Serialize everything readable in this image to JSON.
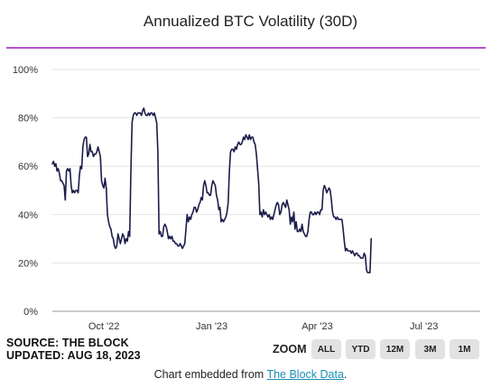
{
  "header": {
    "title": "Annualized BTC Volatility (30D)"
  },
  "footer": {
    "source": "SOURCE: THE BLOCK",
    "updated": "UPDATED: AUG 18, 2023",
    "zoom_label": "ZOOM",
    "zoom_buttons": [
      "ALL",
      "YTD",
      "12M",
      "3M",
      "1M"
    ],
    "embed_prefix": "Chart embedded from ",
    "embed_link": "The Block Data",
    "embed_suffix": "."
  },
  "colors": {
    "line": "#1c1c4a",
    "accent_rule": "#b44fd0",
    "link": "#1a8fb5",
    "button_bg": "#e2e2e2"
  },
  "chart_data": {
    "type": "line",
    "title": "Annualized BTC Volatility (30D)",
    "xlabel": "",
    "ylabel": "",
    "ylim": [
      0,
      100
    ],
    "y_ticks": [
      0,
      20,
      40,
      60,
      80,
      100
    ],
    "y_tick_labels": [
      "0%",
      "20%",
      "40%",
      "60%",
      "80%",
      "100%"
    ],
    "x_range": [
      "2022-08-18",
      "2023-08-18"
    ],
    "x_ticks": [
      {
        "date": "2022-10-01",
        "label": "Oct '22"
      },
      {
        "date": "2023-01-01",
        "label": "Jan '23"
      },
      {
        "date": "2023-04-01",
        "label": "Apr '23"
      },
      {
        "date": "2023-07-01",
        "label": "Jul '23"
      }
    ],
    "grid": true,
    "series": [
      {
        "points": [
          [
            "2022-08-18",
            61
          ],
          [
            "2022-08-19",
            62
          ],
          [
            "2022-08-20",
            60
          ],
          [
            "2022-08-21",
            61
          ],
          [
            "2022-08-22",
            58
          ],
          [
            "2022-08-23",
            59
          ],
          [
            "2022-08-24",
            57
          ],
          [
            "2022-08-25",
            54
          ],
          [
            "2022-08-26",
            54
          ],
          [
            "2022-08-27",
            53
          ],
          [
            "2022-08-28",
            52
          ],
          [
            "2022-08-29",
            46
          ],
          [
            "2022-08-30",
            58
          ],
          [
            "2022-08-31",
            59
          ],
          [
            "2022-09-01",
            58
          ],
          [
            "2022-09-02",
            59
          ],
          [
            "2022-09-03",
            52
          ],
          [
            "2022-09-04",
            49
          ],
          [
            "2022-09-05",
            50
          ],
          [
            "2022-09-06",
            49
          ],
          [
            "2022-09-07",
            50
          ],
          [
            "2022-09-08",
            50
          ],
          [
            "2022-09-09",
            49
          ],
          [
            "2022-09-10",
            56
          ],
          [
            "2022-09-11",
            60
          ],
          [
            "2022-09-12",
            59
          ],
          [
            "2022-09-13",
            68
          ],
          [
            "2022-09-14",
            71
          ],
          [
            "2022-09-15",
            72
          ],
          [
            "2022-09-16",
            72
          ],
          [
            "2022-09-17",
            64
          ],
          [
            "2022-09-18",
            65
          ],
          [
            "2022-09-19",
            69
          ],
          [
            "2022-09-20",
            66
          ],
          [
            "2022-09-21",
            66
          ],
          [
            "2022-09-22",
            64
          ],
          [
            "2022-09-23",
            65
          ],
          [
            "2022-09-24",
            65
          ],
          [
            "2022-09-25",
            66
          ],
          [
            "2022-09-26",
            68
          ],
          [
            "2022-09-27",
            66
          ],
          [
            "2022-09-28",
            64
          ],
          [
            "2022-09-29",
            54
          ],
          [
            "2022-09-30",
            52
          ],
          [
            "2022-10-01",
            51
          ],
          [
            "2022-10-02",
            55
          ],
          [
            "2022-10-03",
            51
          ],
          [
            "2022-10-04",
            40
          ],
          [
            "2022-10-05",
            37
          ],
          [
            "2022-10-06",
            35
          ],
          [
            "2022-10-07",
            34
          ],
          [
            "2022-10-08",
            31
          ],
          [
            "2022-10-09",
            30
          ],
          [
            "2022-10-10",
            27
          ],
          [
            "2022-10-11",
            26
          ],
          [
            "2022-10-12",
            27
          ],
          [
            "2022-10-13",
            32
          ],
          [
            "2022-10-14",
            30
          ],
          [
            "2022-10-15",
            28
          ],
          [
            "2022-10-16",
            30
          ],
          [
            "2022-10-17",
            32
          ],
          [
            "2022-10-18",
            31
          ],
          [
            "2022-10-19",
            28
          ],
          [
            "2022-10-20",
            30
          ],
          [
            "2022-10-21",
            29
          ],
          [
            "2022-10-22",
            33
          ],
          [
            "2022-10-23",
            31
          ],
          [
            "2022-10-24",
            58
          ],
          [
            "2022-10-25",
            78
          ],
          [
            "2022-10-26",
            81
          ],
          [
            "2022-10-27",
            82
          ],
          [
            "2022-10-28",
            82
          ],
          [
            "2022-10-29",
            81
          ],
          [
            "2022-10-30",
            82
          ],
          [
            "2022-10-31",
            82
          ],
          [
            "2022-11-01",
            82
          ],
          [
            "2022-11-02",
            81
          ],
          [
            "2022-11-03",
            83
          ],
          [
            "2022-11-04",
            84
          ],
          [
            "2022-11-05",
            82
          ],
          [
            "2022-11-06",
            81
          ],
          [
            "2022-11-07",
            81
          ],
          [
            "2022-11-08",
            82
          ],
          [
            "2022-11-09",
            81
          ],
          [
            "2022-11-10",
            82
          ],
          [
            "2022-11-11",
            82
          ],
          [
            "2022-11-12",
            81
          ],
          [
            "2022-11-13",
            82
          ],
          [
            "2022-11-14",
            80
          ],
          [
            "2022-11-15",
            78
          ],
          [
            "2022-11-16",
            66
          ],
          [
            "2022-11-17",
            32
          ],
          [
            "2022-11-18",
            33
          ],
          [
            "2022-11-19",
            31
          ],
          [
            "2022-11-20",
            31
          ],
          [
            "2022-11-21",
            35
          ],
          [
            "2022-11-22",
            36
          ],
          [
            "2022-11-23",
            35
          ],
          [
            "2022-11-24",
            33
          ],
          [
            "2022-11-25",
            30
          ],
          [
            "2022-11-26",
            31
          ],
          [
            "2022-11-27",
            30
          ],
          [
            "2022-11-28",
            31
          ],
          [
            "2022-11-29",
            29
          ],
          [
            "2022-11-30",
            29
          ],
          [
            "2022-12-01",
            28
          ],
          [
            "2022-12-02",
            28
          ],
          [
            "2022-12-03",
            27
          ],
          [
            "2022-12-04",
            27
          ],
          [
            "2022-12-05",
            28
          ],
          [
            "2022-12-06",
            27
          ],
          [
            "2022-12-07",
            26
          ],
          [
            "2022-12-08",
            27
          ],
          [
            "2022-12-09",
            28
          ],
          [
            "2022-12-10",
            34
          ],
          [
            "2022-12-11",
            40
          ],
          [
            "2022-12-12",
            37
          ],
          [
            "2022-12-13",
            39
          ],
          [
            "2022-12-14",
            38
          ],
          [
            "2022-12-15",
            40
          ],
          [
            "2022-12-16",
            41
          ],
          [
            "2022-12-17",
            43
          ],
          [
            "2022-12-18",
            43
          ],
          [
            "2022-12-19",
            41
          ],
          [
            "2022-12-20",
            42
          ],
          [
            "2022-12-21",
            44
          ],
          [
            "2022-12-22",
            45
          ],
          [
            "2022-12-23",
            47
          ],
          [
            "2022-12-24",
            46
          ],
          [
            "2022-12-25",
            52
          ],
          [
            "2022-12-26",
            54
          ],
          [
            "2022-12-27",
            52
          ],
          [
            "2022-12-28",
            49
          ],
          [
            "2022-12-29",
            49
          ],
          [
            "2022-12-30",
            48
          ],
          [
            "2022-12-31",
            48
          ],
          [
            "2023-01-01",
            52
          ],
          [
            "2023-01-02",
            54
          ],
          [
            "2023-01-03",
            53
          ],
          [
            "2023-01-04",
            52
          ],
          [
            "2023-01-05",
            48
          ],
          [
            "2023-01-06",
            46
          ],
          [
            "2023-01-07",
            42
          ],
          [
            "2023-01-08",
            43
          ],
          [
            "2023-01-09",
            37
          ],
          [
            "2023-01-10",
            38
          ],
          [
            "2023-01-11",
            37
          ],
          [
            "2023-01-12",
            38
          ],
          [
            "2023-01-13",
            39
          ],
          [
            "2023-01-14",
            41
          ],
          [
            "2023-01-15",
            45
          ],
          [
            "2023-01-16",
            58
          ],
          [
            "2023-01-17",
            66
          ],
          [
            "2023-01-18",
            67
          ],
          [
            "2023-01-19",
            67
          ],
          [
            "2023-01-20",
            66
          ],
          [
            "2023-01-21",
            68
          ],
          [
            "2023-01-22",
            67
          ],
          [
            "2023-01-23",
            69
          ],
          [
            "2023-01-24",
            70
          ],
          [
            "2023-01-25",
            69
          ],
          [
            "2023-01-26",
            69
          ],
          [
            "2023-01-27",
            70
          ],
          [
            "2023-01-28",
            72
          ],
          [
            "2023-01-29",
            71
          ],
          [
            "2023-01-30",
            73
          ],
          [
            "2023-01-31",
            72
          ],
          [
            "2023-02-01",
            71
          ],
          [
            "2023-02-02",
            73
          ],
          [
            "2023-02-03",
            71
          ],
          [
            "2023-02-04",
            72
          ],
          [
            "2023-02-05",
            72
          ],
          [
            "2023-02-06",
            70
          ],
          [
            "2023-02-07",
            69
          ],
          [
            "2023-02-08",
            65
          ],
          [
            "2023-02-09",
            59
          ],
          [
            "2023-02-10",
            53
          ],
          [
            "2023-02-11",
            40
          ],
          [
            "2023-02-12",
            41
          ],
          [
            "2023-02-13",
            39
          ],
          [
            "2023-02-14",
            42
          ],
          [
            "2023-02-15",
            40
          ],
          [
            "2023-02-16",
            41
          ],
          [
            "2023-02-17",
            40
          ],
          [
            "2023-02-18",
            39
          ],
          [
            "2023-02-19",
            40
          ],
          [
            "2023-02-20",
            38
          ],
          [
            "2023-02-21",
            39
          ],
          [
            "2023-02-22",
            38
          ],
          [
            "2023-02-23",
            40
          ],
          [
            "2023-02-24",
            42
          ],
          [
            "2023-02-25",
            44
          ],
          [
            "2023-02-26",
            45
          ],
          [
            "2023-02-27",
            44
          ],
          [
            "2023-02-28",
            40
          ],
          [
            "2023-03-01",
            41
          ],
          [
            "2023-03-02",
            44
          ],
          [
            "2023-03-03",
            45
          ],
          [
            "2023-03-04",
            44
          ],
          [
            "2023-03-05",
            43
          ],
          [
            "2023-03-06",
            46
          ],
          [
            "2023-03-07",
            44
          ],
          [
            "2023-03-08",
            42
          ],
          [
            "2023-03-09",
            36
          ],
          [
            "2023-03-10",
            39
          ],
          [
            "2023-03-11",
            37
          ],
          [
            "2023-03-12",
            41
          ],
          [
            "2023-03-13",
            34
          ],
          [
            "2023-03-14",
            37
          ],
          [
            "2023-03-15",
            33
          ],
          [
            "2023-03-16",
            33
          ],
          [
            "2023-03-17",
            34
          ],
          [
            "2023-03-18",
            33
          ],
          [
            "2023-03-19",
            36
          ],
          [
            "2023-03-20",
            33
          ],
          [
            "2023-03-21",
            32
          ],
          [
            "2023-03-22",
            31
          ],
          [
            "2023-03-23",
            31
          ],
          [
            "2023-03-24",
            33
          ],
          [
            "2023-03-25",
            38
          ],
          [
            "2023-03-26",
            41
          ],
          [
            "2023-03-27",
            41
          ],
          [
            "2023-03-28",
            40
          ],
          [
            "2023-03-29",
            40
          ],
          [
            "2023-03-30",
            41
          ],
          [
            "2023-03-31",
            40
          ],
          [
            "2023-04-01",
            41
          ],
          [
            "2023-04-02",
            41
          ],
          [
            "2023-04-03",
            40
          ],
          [
            "2023-04-04",
            42
          ],
          [
            "2023-04-05",
            42
          ],
          [
            "2023-04-06",
            50
          ],
          [
            "2023-04-07",
            52
          ],
          [
            "2023-04-08",
            51
          ],
          [
            "2023-04-09",
            49
          ],
          [
            "2023-04-10",
            50
          ],
          [
            "2023-04-11",
            51
          ],
          [
            "2023-04-12",
            50
          ],
          [
            "2023-04-13",
            46
          ],
          [
            "2023-04-14",
            41
          ],
          [
            "2023-04-15",
            39
          ],
          [
            "2023-04-16",
            39
          ],
          [
            "2023-04-17",
            38
          ],
          [
            "2023-04-18",
            39
          ],
          [
            "2023-04-19",
            38
          ],
          [
            "2023-04-20",
            38
          ],
          [
            "2023-04-21",
            38
          ],
          [
            "2023-04-22",
            38
          ],
          [
            "2023-04-23",
            34
          ],
          [
            "2023-04-24",
            29
          ],
          [
            "2023-04-25",
            25
          ],
          [
            "2023-04-26",
            26
          ],
          [
            "2023-04-27",
            25
          ],
          [
            "2023-04-28",
            25
          ],
          [
            "2023-04-29",
            25
          ],
          [
            "2023-04-30",
            24
          ],
          [
            "2023-05-01",
            25
          ],
          [
            "2023-05-02",
            24
          ],
          [
            "2023-05-03",
            23
          ],
          [
            "2023-05-04",
            24
          ],
          [
            "2023-05-05",
            24
          ],
          [
            "2023-05-06",
            23
          ],
          [
            "2023-05-07",
            23
          ],
          [
            "2023-05-08",
            22
          ],
          [
            "2023-05-09",
            22
          ],
          [
            "2023-05-10",
            22
          ],
          [
            "2023-05-11",
            24
          ],
          [
            "2023-05-12",
            23
          ],
          [
            "2023-05-13",
            17
          ],
          [
            "2023-05-14",
            16
          ],
          [
            "2023-05-15",
            16
          ],
          [
            "2023-05-16",
            16
          ],
          [
            "2023-05-17",
            30
          ]
        ]
      }
    ]
  }
}
